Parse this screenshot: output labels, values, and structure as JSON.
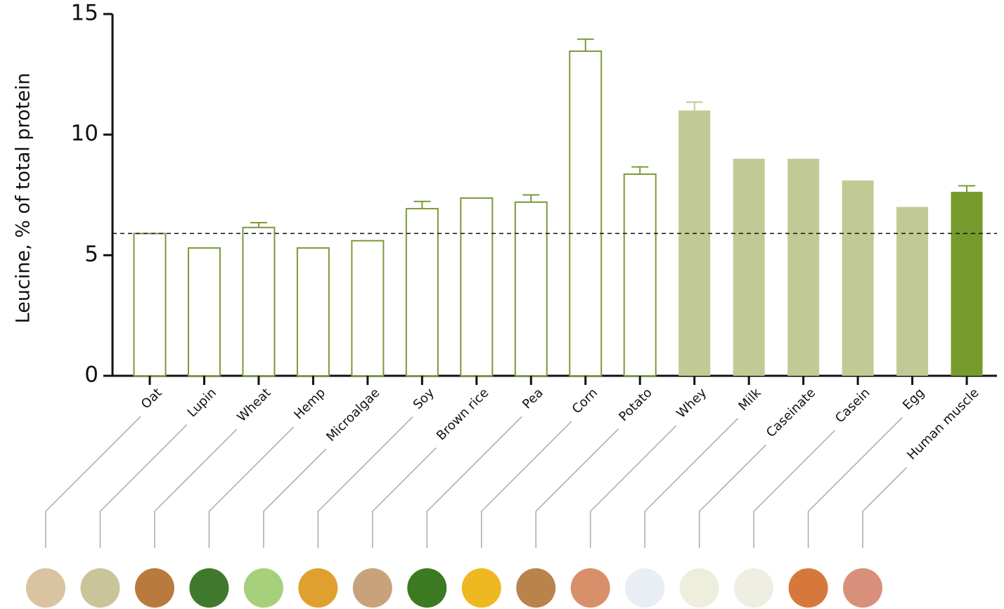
{
  "chart_data": {
    "type": "bar",
    "y_label": "Leucine, % of total protein",
    "categories": [
      "Oat",
      "Lupin",
      "Wheat",
      "Hemp",
      "Microalgae",
      "Soy",
      "Brown rice",
      "Pea",
      "Corn",
      "Potato",
      "Whey",
      "Milk",
      "Caseinate",
      "Casein",
      "Egg",
      "Human muscle"
    ],
    "values": [
      5.9,
      5.3,
      6.15,
      5.3,
      5.6,
      6.93,
      7.37,
      7.2,
      13.46,
      8.36,
      11.0,
      9.0,
      9.0,
      8.1,
      7.0,
      7.63
    ],
    "errors": [
      null,
      null,
      0.2,
      null,
      null,
      0.3,
      null,
      0.3,
      0.5,
      0.3,
      0.35,
      null,
      null,
      null,
      null,
      0.25
    ],
    "colors": [
      "#ffffff",
      "#ffffff",
      "#ffffff",
      "#ffffff",
      "#ffffff",
      "#ffffff",
      "#ffffff",
      "#ffffff",
      "#ffffff",
      "#ffffff",
      "#c1ca94",
      "#c1ca94",
      "#c1ca94",
      "#c1ca94",
      "#c1ca94",
      "#769b2d"
    ],
    "outline_color": "#7a9a3a",
    "reference_line": 5.9,
    "ylim": [
      0,
      15
    ],
    "yticks": [
      0,
      5,
      10,
      15
    ]
  }
}
